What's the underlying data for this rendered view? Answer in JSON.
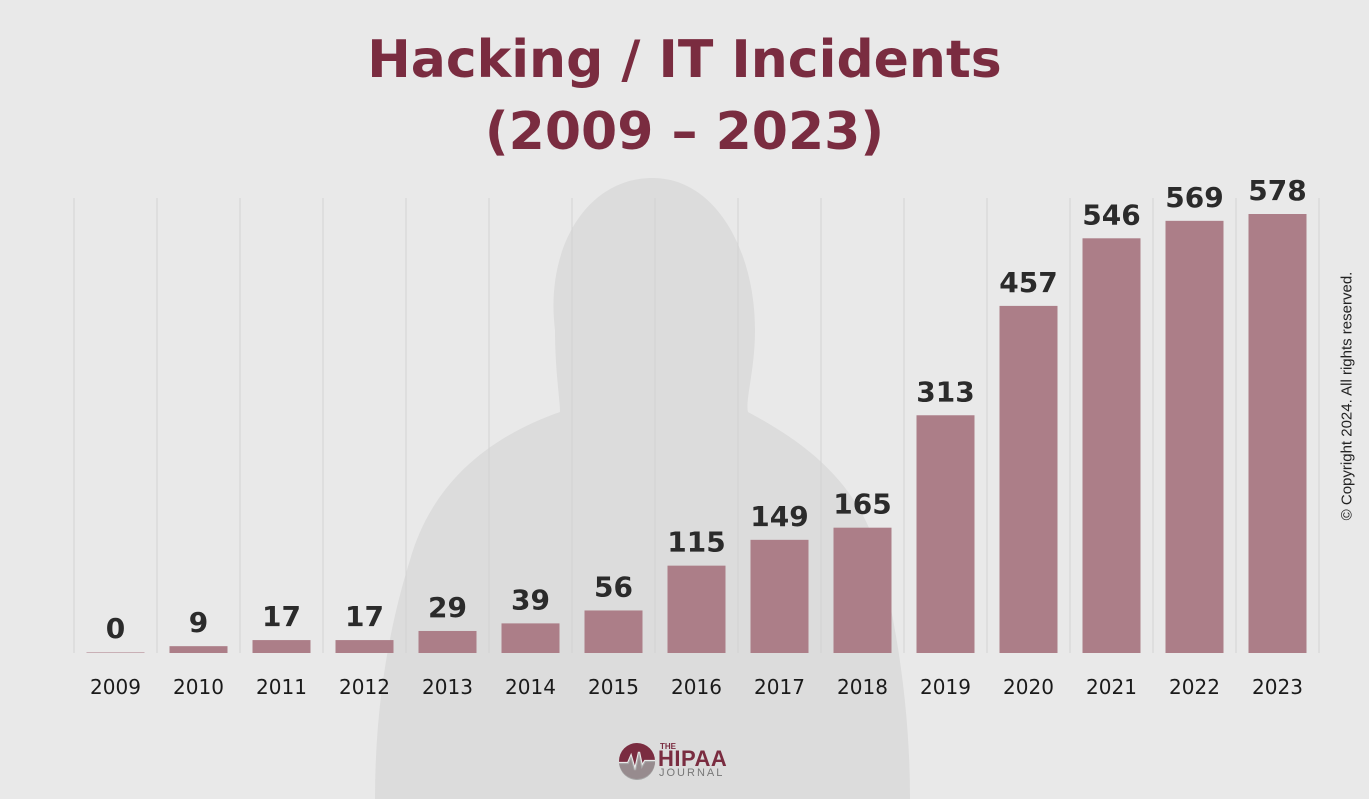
{
  "chart_data": {
    "type": "bar",
    "title": "Hacking / IT Incidents",
    "subtitle": "(2009 – 2023)",
    "xlabel": "",
    "ylabel": "",
    "categories": [
      "2009",
      "2010",
      "2011",
      "2012",
      "2013",
      "2014",
      "2015",
      "2016",
      "2017",
      "2018",
      "2019",
      "2020",
      "2021",
      "2022",
      "2023"
    ],
    "values": [
      0,
      9,
      17,
      17,
      29,
      39,
      56,
      115,
      149,
      165,
      313,
      457,
      546,
      569,
      578
    ],
    "ylim": [
      0,
      600
    ],
    "grid": "vertical",
    "data_labels": true
  },
  "colors": {
    "background": "#e9e9e9",
    "bar": "#a97883",
    "title": "#7a2c40",
    "label": "#2b2b2b",
    "gridline": "#d2d2d2",
    "silhouette": "#dadada"
  },
  "footer": {
    "copyright": "© Copyright 2024. All rights reserved.",
    "logo": {
      "the": "THE",
      "name": "HIPAA",
      "sub": "JOURNAL"
    }
  }
}
